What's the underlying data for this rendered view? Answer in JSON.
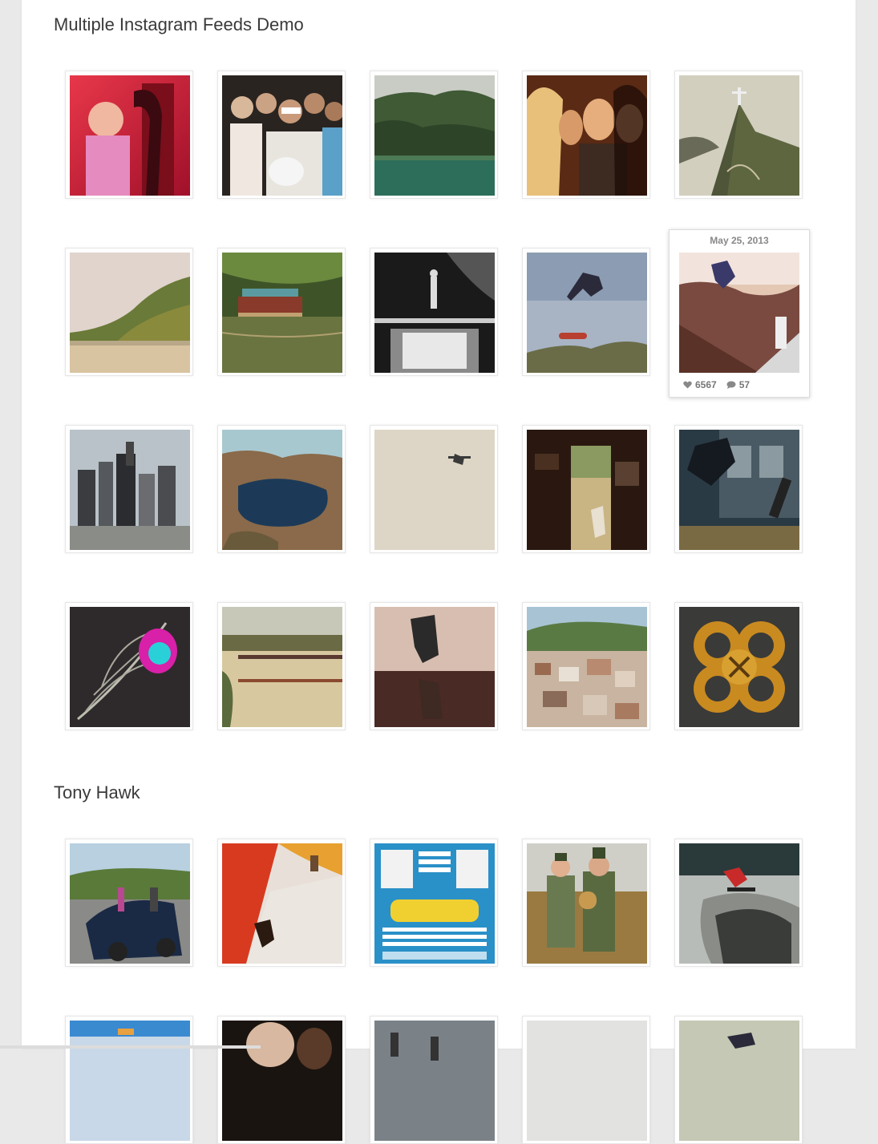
{
  "sections": [
    {
      "title": "Multiple Instagram Feeds Demo"
    },
    {
      "title": "Tony Hawk"
    }
  ],
  "hover_card": {
    "date": "May 25, 2013",
    "likes": "6567",
    "comments": "57"
  },
  "icons": {
    "like": "heart-icon",
    "comment": "comment-bubble-icon"
  }
}
